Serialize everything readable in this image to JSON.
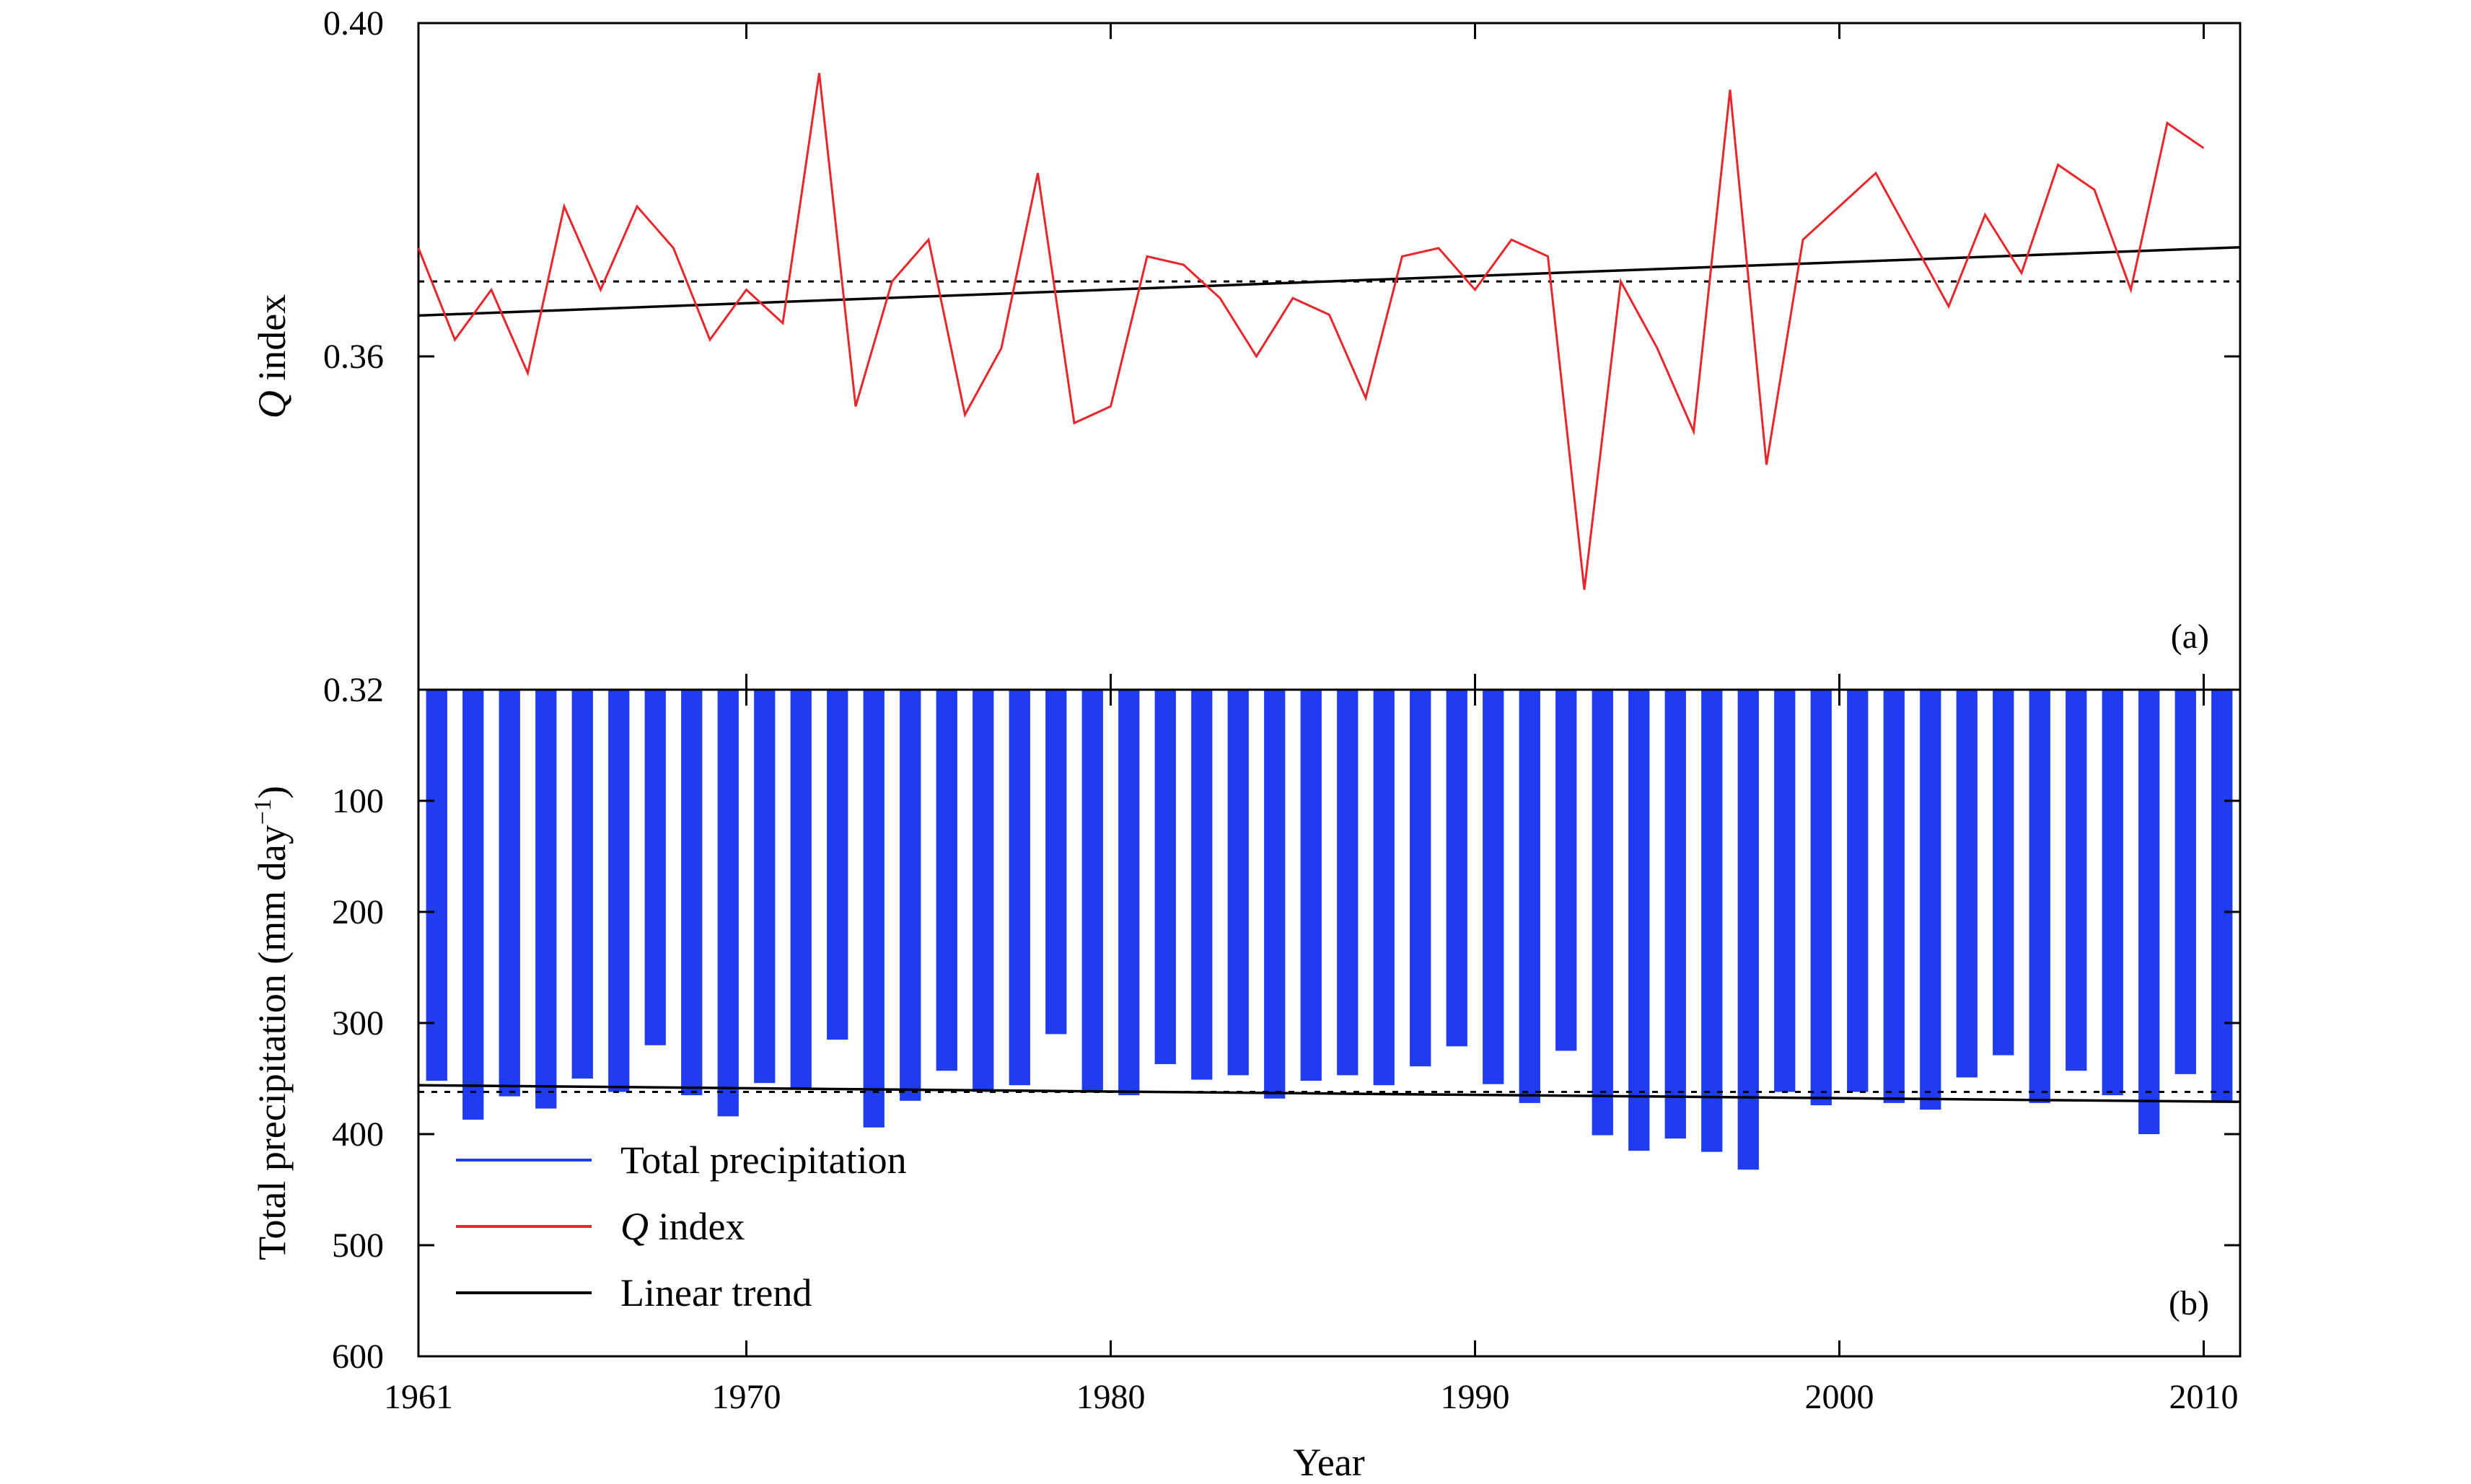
{
  "chart_data": [
    {
      "panel": "a",
      "type": "line",
      "panel_label": "(a)",
      "xlabel": "",
      "ylabel_italic": "Q",
      "ylabel_rest": " index",
      "xlim": [
        1961,
        2011
      ],
      "ylim": [
        0.32,
        0.4
      ],
      "yticks": [
        0.32,
        0.36,
        0.4
      ],
      "ytick_labels": [
        "0.32",
        "0.36",
        "0.40"
      ],
      "x": [
        1961,
        1962,
        1963,
        1964,
        1965,
        1966,
        1967,
        1968,
        1969,
        1970,
        1971,
        1972,
        1973,
        1974,
        1975,
        1976,
        1977,
        1978,
        1979,
        1980,
        1981,
        1982,
        1983,
        1984,
        1985,
        1986,
        1987,
        1988,
        1989,
        1990,
        1991,
        1992,
        1993,
        1994,
        1995,
        1996,
        1997,
        1998,
        1999,
        2000,
        2001,
        2002,
        2003,
        2004,
        2005,
        2006,
        2007,
        2008,
        2009,
        2010
      ],
      "series": [
        {
          "name": "Q index",
          "color": "#e8262b",
          "values": [
            0.373,
            0.362,
            0.368,
            0.358,
            0.378,
            0.368,
            0.378,
            0.373,
            0.362,
            0.368,
            0.364,
            0.394,
            0.354,
            0.369,
            0.374,
            0.353,
            0.361,
            0.382,
            0.352,
            0.354,
            0.372,
            0.371,
            0.367,
            0.36,
            0.367,
            0.365,
            0.355,
            0.372,
            0.373,
            0.368,
            0.374,
            0.372,
            0.332,
            0.369,
            0.361,
            0.351,
            0.392,
            0.347,
            0.374,
            0.378,
            0.382,
            0.374,
            0.366,
            0.377,
            0.37,
            0.383,
            0.38,
            0.368,
            0.388,
            0.385
          ]
        },
        {
          "name": "Linear trend",
          "color": "#000000",
          "style": "solid",
          "x": [
            1961,
            2011
          ],
          "values": [
            0.3649,
            0.3731
          ]
        },
        {
          "name": "Mean",
          "color": "#000000",
          "style": "dotted",
          "x": [
            1961,
            2011
          ],
          "values": [
            0.369,
            0.369
          ]
        }
      ]
    },
    {
      "panel": "b",
      "type": "bar",
      "panel_label": "(b)",
      "xlabel": "Year",
      "ylabel": "Total precipitation (mm day",
      "ylabel_sup": "−1",
      "ylabel_close": ")",
      "xlim": [
        1961,
        2011
      ],
      "ylim": [
        0,
        600
      ],
      "y_inverted": true,
      "yticks": [
        100,
        200,
        300,
        400,
        500,
        600
      ],
      "ytick_labels": [
        "100",
        "200",
        "300",
        "400",
        "500",
        "600"
      ],
      "xticks": [
        1961,
        1970,
        1980,
        1990,
        2000,
        2010
      ],
      "xtick_labels": [
        "1961",
        "1970",
        "1980",
        "1990",
        "2000",
        "2010"
      ],
      "x": [
        1961.5,
        1962.5,
        1963.5,
        1964.5,
        1965.5,
        1966.5,
        1967.5,
        1968.5,
        1969.5,
        1970.5,
        1971.5,
        1972.5,
        1973.5,
        1974.5,
        1975.5,
        1976.5,
        1977.5,
        1978.5,
        1979.5,
        1980.5,
        1981.5,
        1982.5,
        1983.5,
        1984.5,
        1985.5,
        1986.5,
        1987.5,
        1988.5,
        1989.5,
        1990.5,
        1991.5,
        1992.5,
        1993.5,
        1994.5,
        1995.5,
        1996.5,
        1997.5,
        1998.5,
        1999.5,
        2000.5,
        2001.5,
        2002.5,
        2003.5,
        2004.5,
        2005.5,
        2006.5,
        2007.5,
        2008.5,
        2009.5,
        2010.5
      ],
      "series": [
        {
          "name": "Total precipitation",
          "color": "#1f3cf0",
          "values": [
            352,
            387,
            366,
            377,
            350,
            362,
            320,
            365,
            384,
            354,
            360,
            315,
            394,
            370,
            343,
            362,
            356,
            310,
            361,
            365,
            337,
            351,
            347,
            368,
            352,
            347,
            356,
            339,
            321,
            355,
            372,
            325,
            401,
            415,
            404,
            416,
            432,
            362,
            374,
            362,
            372,
            378,
            349,
            329,
            372,
            343,
            365,
            400,
            346,
            371
          ]
        },
        {
          "name": "Linear trend",
          "color": "#000000",
          "style": "solid",
          "x": [
            1961,
            2011
          ],
          "values": [
            356,
            371
          ]
        },
        {
          "name": "Mean",
          "color": "#000000",
          "style": "dotted",
          "x": [
            1961,
            2011
          ],
          "values": [
            362,
            362
          ]
        }
      ],
      "legend": {
        "placement": "bottom-left",
        "entries": [
          {
            "label": "Total precipitation",
            "color": "#1f3cf0",
            "italic_prefix": ""
          },
          {
            "label": " index",
            "color": "#e8262b",
            "italic_prefix": "Q"
          },
          {
            "label": "Linear trend",
            "color": "#000000",
            "italic_prefix": ""
          }
        ]
      }
    }
  ]
}
